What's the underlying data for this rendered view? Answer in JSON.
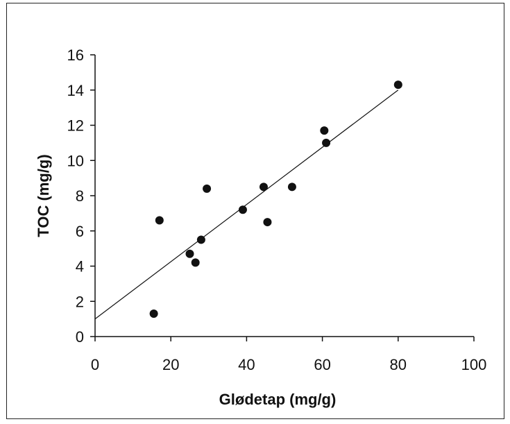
{
  "chart_data": {
    "type": "scatter",
    "title": "",
    "xlabel": "Glødetap (mg/g)",
    "ylabel": "TOC (mg/g)",
    "xlim": [
      0,
      100
    ],
    "ylim": [
      0,
      16
    ],
    "x_ticks": [
      "0",
      "20",
      "40",
      "60",
      "80",
      "100"
    ],
    "y_ticks": [
      "0",
      "2",
      "4",
      "6",
      "8",
      "10",
      "12",
      "14",
      "16"
    ],
    "grid": false,
    "legend": "none",
    "marker_color": "#111111",
    "points": [
      {
        "x": 15.5,
        "y": 1.3
      },
      {
        "x": 17,
        "y": 6.6
      },
      {
        "x": 25,
        "y": 4.7
      },
      {
        "x": 26.5,
        "y": 4.2
      },
      {
        "x": 28,
        "y": 5.5
      },
      {
        "x": 29.5,
        "y": 8.4
      },
      {
        "x": 39,
        "y": 7.2
      },
      {
        "x": 44.5,
        "y": 8.5
      },
      {
        "x": 45.5,
        "y": 6.5
      },
      {
        "x": 52,
        "y": 8.5
      },
      {
        "x": 60.5,
        "y": 11.7
      },
      {
        "x": 61,
        "y": 11.0
      },
      {
        "x": 80,
        "y": 14.3
      }
    ],
    "trendline": {
      "x": [
        0,
        80
      ],
      "y": [
        1.0,
        14.0
      ]
    }
  }
}
